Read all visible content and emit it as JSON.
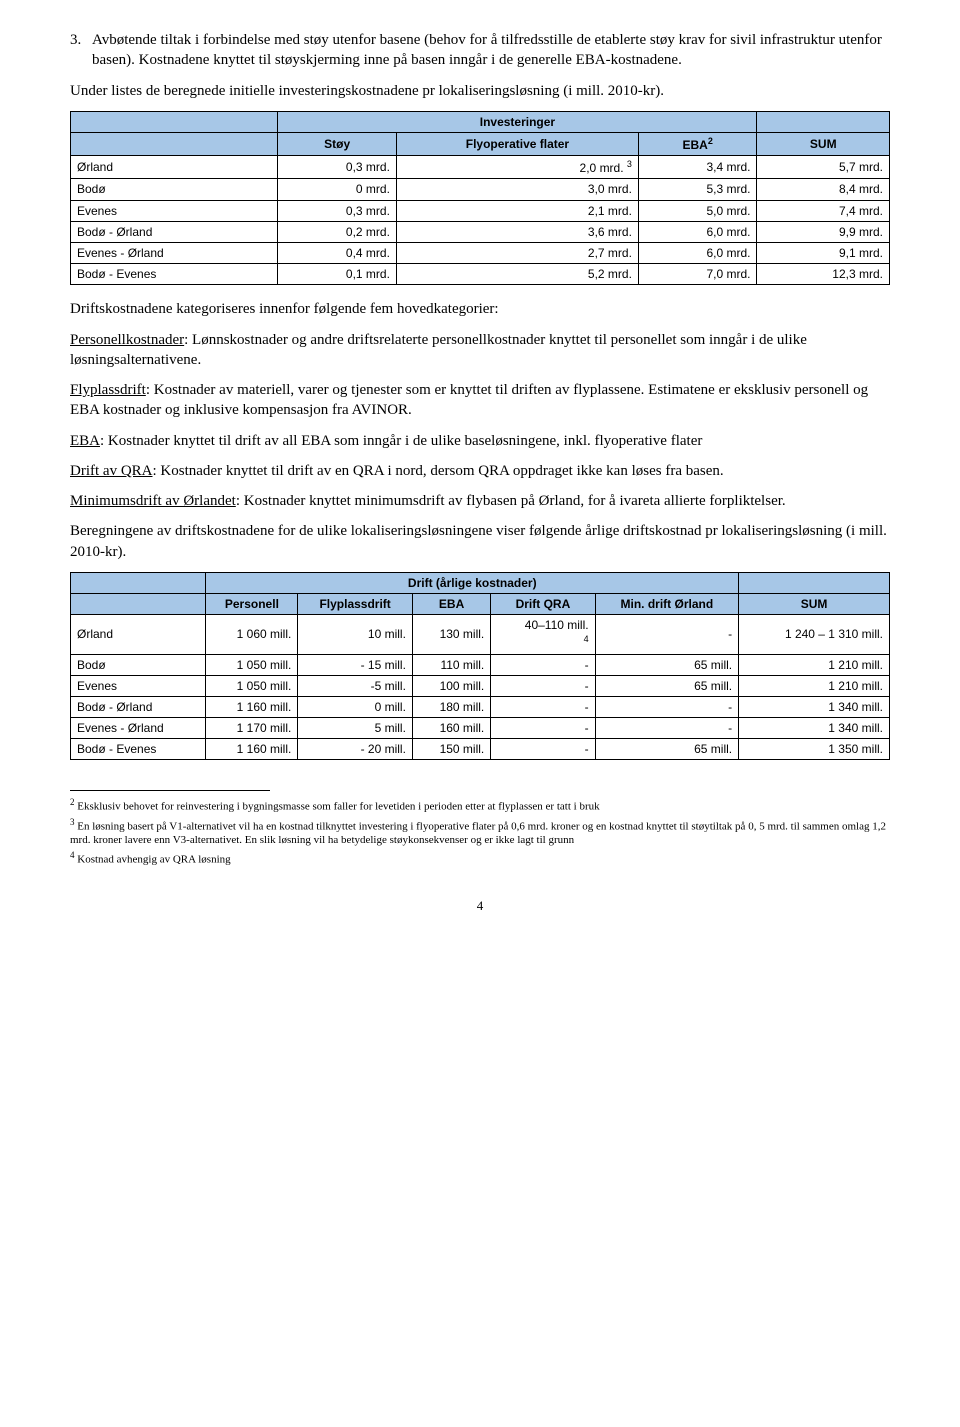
{
  "list": {
    "num": "3.",
    "text": "Avbøtende tiltak i forbindelse med støy utenfor basene (behov for å tilfredsstille de etablerte støy krav for sivil infrastruktur utenfor basen). Kostnadene knyttet til støyskjerming inne på basen inngår i de generelle EBA-kostnadene."
  },
  "para1": "Under listes de beregnede initielle investeringskostnadene pr lokaliseringsløsning (i mill. 2010-kr).",
  "table1": {
    "title": "Investeringer",
    "headers": {
      "c0": "",
      "c1": "Støy",
      "c2": "Flyoperative flater",
      "c3": "EBA",
      "c3_sup": "2",
      "c4": "SUM"
    },
    "rows": [
      {
        "label": "Ørland",
        "c1": "0,3 mrd.",
        "c2": "2,0 mrd.",
        "c2_sup": "3",
        "c3": "3,4 mrd.",
        "c4": "5,7 mrd."
      },
      {
        "label": "Bodø",
        "c1": "0 mrd.",
        "c2": "3,0 mrd.",
        "c3": "5,3 mrd.",
        "c4": "8,4 mrd."
      },
      {
        "label": "Evenes",
        "c1": "0,3 mrd.",
        "c2": "2,1 mrd.",
        "c3": "5,0 mrd.",
        "c4": "7,4 mrd."
      },
      {
        "label": "Bodø - Ørland",
        "c1": "0,2 mrd.",
        "c2": "3,6 mrd.",
        "c3": "6,0 mrd.",
        "c4": "9,9 mrd."
      },
      {
        "label": "Evenes - Ørland",
        "c1": "0,4 mrd.",
        "c2": "2,7 mrd.",
        "c3": "6,0 mrd.",
        "c4": "9,1 mrd."
      },
      {
        "label": "Bodø - Evenes",
        "c1": "0,1 mrd.",
        "c2": "5,2 mrd.",
        "c3": "7,0 mrd.",
        "c4": "12,3 mrd."
      }
    ]
  },
  "para2": "Driftskostnadene kategoriseres innenfor følgende fem hovedkategorier:",
  "def1": {
    "label": "Personellkostnader",
    "text": ": Lønnskostnader og andre driftsrelaterte personellkostnader knyttet til personellet som inngår i de ulike løsningsalternativene."
  },
  "def2": {
    "label": "Flyplassdrift",
    "text": ": Kostnader av materiell, varer og tjenester som er knyttet til driften av flyplassene. Estimatene er eksklusiv personell og EBA kostnader og inklusive kompensasjon fra AVINOR."
  },
  "def3": {
    "label": "EBA",
    "text": ": Kostnader knyttet til drift av all EBA som inngår i de ulike baseløsningene, inkl. flyoperative flater"
  },
  "def4": {
    "label": "Drift av QRA",
    "text": ": Kostnader knyttet til drift av en QRA i nord, dersom QRA oppdraget ikke kan løses fra basen."
  },
  "def5": {
    "label": "Minimumsdrift av Ørlandet",
    "text": ": Kostnader knyttet minimumsdrift av flybasen på Ørland, for å ivareta allierte forpliktelser."
  },
  "para3": "Beregningene av driftskostnadene for de ulike lokaliseringsløsningene viser følgende årlige driftskostnad pr lokaliseringsløsning (i mill. 2010-kr).",
  "table2": {
    "title": "Drift (årlige kostnader)",
    "headers": {
      "c0": "",
      "c1": "Personell",
      "c2": "Flyplassdrift",
      "c3": "EBA",
      "c4": "Drift QRA",
      "c5": "Min. drift Ørland",
      "c6": "SUM"
    },
    "rows": [
      {
        "label": "Ørland",
        "c1": "1 060 mill.",
        "c2": "10 mill.",
        "c3": "130 mill.",
        "c4": "40–110 mill.",
        "c4_sup": "4",
        "c5": "-",
        "c6": "1 240 – 1 310 mill."
      },
      {
        "label": "Bodø",
        "c1": "1 050 mill.",
        "c2": "- 15 mill.",
        "c3": "110 mill.",
        "c4": "-",
        "c5": "65 mill.",
        "c6": "1 210 mill."
      },
      {
        "label": "Evenes",
        "c1": "1 050 mill.",
        "c2": "-5 mill.",
        "c3": "100 mill.",
        "c4": "-",
        "c5": "65 mill.",
        "c6": "1 210 mill."
      },
      {
        "label": "Bodø - Ørland",
        "c1": "1 160 mill.",
        "c2": "0 mill.",
        "c3": "180 mill.",
        "c4": "-",
        "c5": "-",
        "c6": "1 340 mill."
      },
      {
        "label": "Evenes - Ørland",
        "c1": "1 170 mill.",
        "c2": "5 mill.",
        "c3": "160 mill.",
        "c4": "-",
        "c5": "-",
        "c6": "1 340 mill."
      },
      {
        "label": "Bodø - Evenes",
        "c1": "1 160 mill.",
        "c2": "- 20 mill.",
        "c3": "150 mill.",
        "c4": "-",
        "c5": "65 mill.",
        "c6": "1 350 mill."
      }
    ]
  },
  "footnotes": {
    "f2": {
      "sup": "2",
      "text": " Eksklusiv behovet for reinvestering i bygningsmasse som faller for levetiden i perioden etter at flyplassen er tatt i bruk"
    },
    "f3": {
      "sup": "3",
      "text": " En løsning basert på V1-alternativet vil ha en kostnad tilknyttet investering i flyoperative flater på 0,6 mrd. kroner og en kostnad knyttet til støytiltak på 0, 5 mrd. til sammen omlag 1,2 mrd. kroner lavere enn V3-alternativet. En slik løsning vil ha betydelige støykonsekvenser og er ikke lagt til grunn"
    },
    "f4": {
      "sup": "4",
      "text": " Kostnad avhengig av QRA løsning"
    }
  },
  "pagenum": "4"
}
